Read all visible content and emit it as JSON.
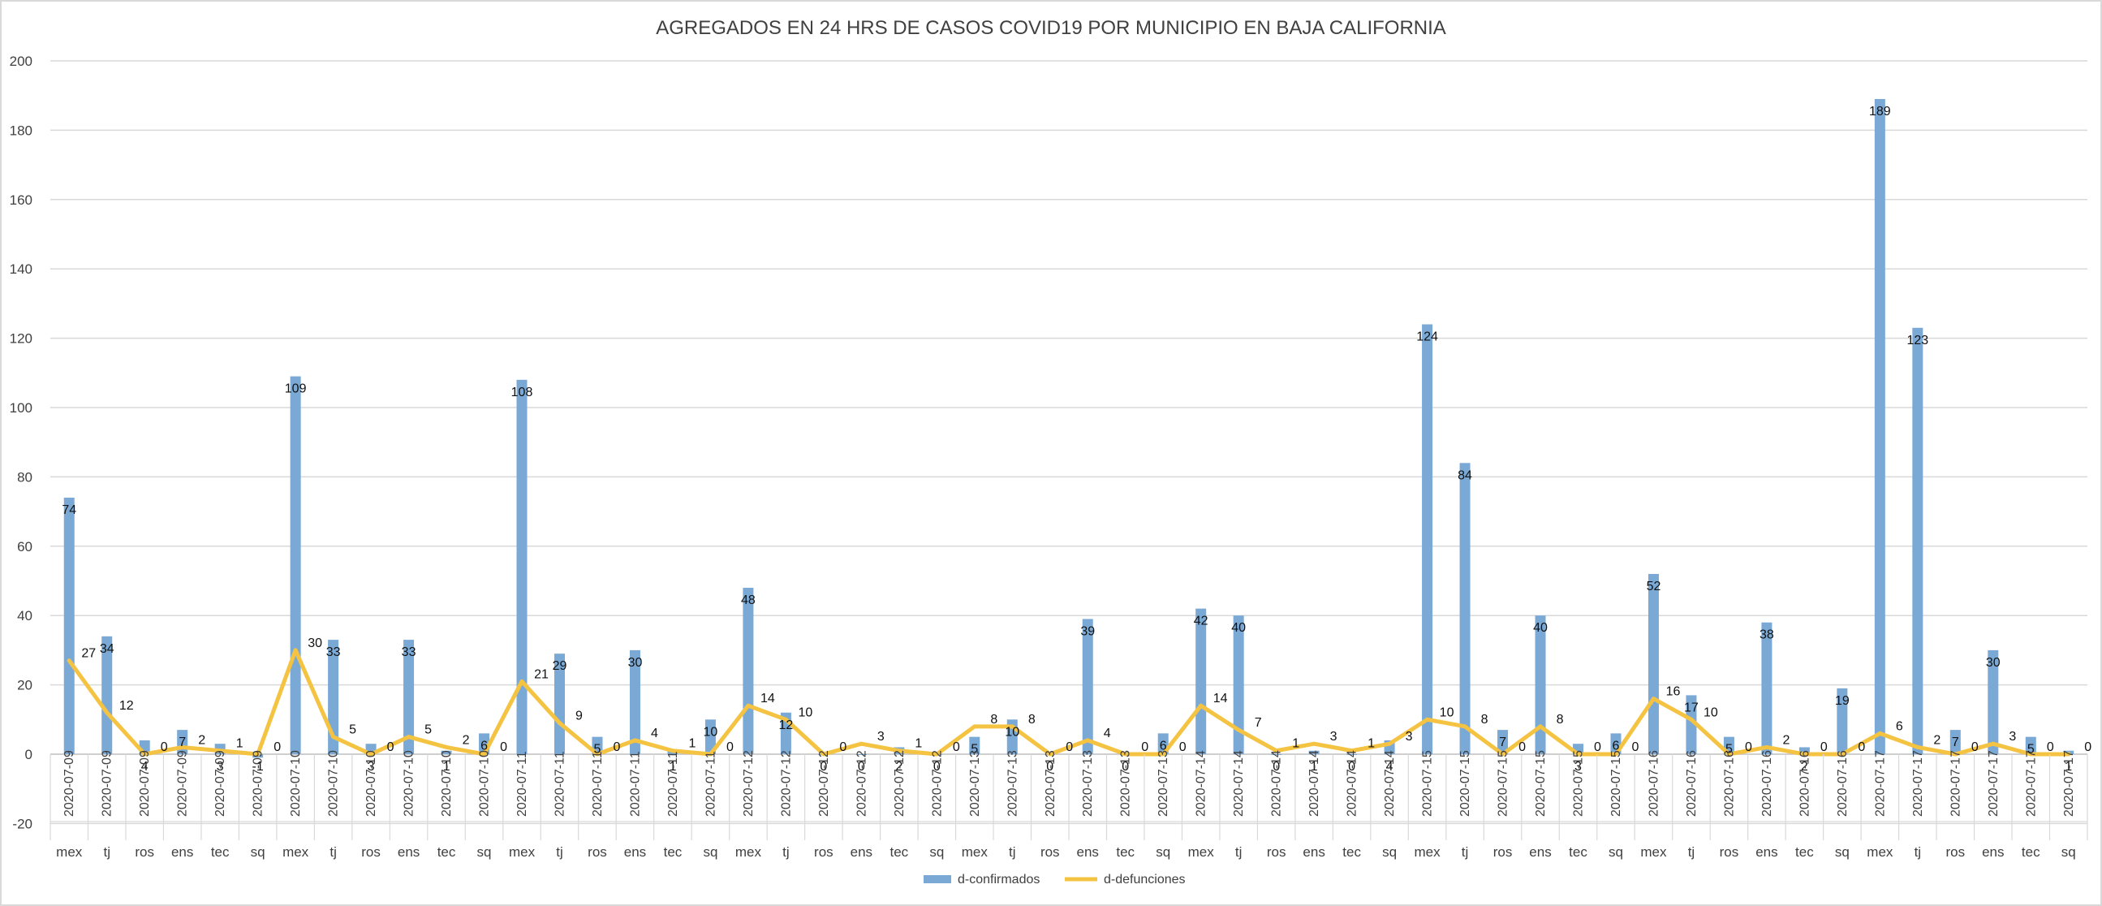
{
  "chart_data": {
    "type": "bar",
    "title": "AGREGADOS EN 24 HRS DE CASOS COVID19 POR MUNICIPIO EN BAJA CALIFORNIA",
    "xlabel": "",
    "ylabel": "",
    "ylim": [
      -20,
      200
    ],
    "yticks": [
      -20,
      0,
      20,
      40,
      60,
      80,
      100,
      120,
      140,
      160,
      180,
      200
    ],
    "grid": true,
    "legend_position": "bottom",
    "dates": [
      "2020-07-09",
      "2020-07-09",
      "2020-07-09",
      "2020-07-09",
      "2020-07-09",
      "2020-07-09",
      "2020-07-10",
      "2020-07-10",
      "2020-07-10",
      "2020-07-10",
      "2020-07-10",
      "2020-07-10",
      "2020-07-11",
      "2020-07-11",
      "2020-07-11",
      "2020-07-11",
      "2020-07-11",
      "2020-07-11",
      "2020-07-12",
      "2020-07-12",
      "2020-07-12",
      "2020-07-12",
      "2020-07-12",
      "2020-07-12",
      "2020-07-13",
      "2020-07-13",
      "2020-07-13",
      "2020-07-13",
      "2020-07-13",
      "2020-07-13",
      "2020-07-14",
      "2020-07-14",
      "2020-07-14",
      "2020-07-14",
      "2020-07-14",
      "2020-07-14",
      "2020-07-15",
      "2020-07-15",
      "2020-07-15",
      "2020-07-15",
      "2020-07-15",
      "2020-07-15",
      "2020-07-16",
      "2020-07-16",
      "2020-07-16",
      "2020-07-16",
      "2020-07-16",
      "2020-07-16",
      "2020-07-17",
      "2020-07-17",
      "2020-07-17",
      "2020-07-17",
      "2020-07-17",
      "2020-07-17"
    ],
    "categories": [
      "mex",
      "tj",
      "ros",
      "ens",
      "tec",
      "sq",
      "mex",
      "tj",
      "ros",
      "ens",
      "tec",
      "sq",
      "mex",
      "tj",
      "ros",
      "ens",
      "tec",
      "sq",
      "mex",
      "tj",
      "ros",
      "ens",
      "tec",
      "sq",
      "mex",
      "tj",
      "ros",
      "ens",
      "tec",
      "sq",
      "mex",
      "tj",
      "ros",
      "ens",
      "tec",
      "sq",
      "mex",
      "tj",
      "ros",
      "ens",
      "tec",
      "sq",
      "mex",
      "tj",
      "ros",
      "ens",
      "tec",
      "sq",
      "mex",
      "tj",
      "ros",
      "ens",
      "tec",
      "sq"
    ],
    "series": [
      {
        "name": "d-confirmados",
        "type": "bar",
        "color": "#7aa9d6",
        "values": [
          74,
          34,
          4,
          7,
          3,
          -1,
          109,
          33,
          3,
          33,
          1,
          6,
          108,
          29,
          5,
          30,
          1,
          10,
          48,
          12,
          0,
          0,
          2,
          0,
          5,
          10,
          0,
          39,
          0,
          6,
          42,
          40,
          0,
          1,
          0,
          4,
          124,
          84,
          7,
          40,
          3,
          6,
          52,
          17,
          5,
          38,
          2,
          19,
          189,
          123,
          7,
          30,
          5,
          1
        ]
      },
      {
        "name": "d-defunciones",
        "type": "line",
        "color": "#f5c342",
        "values": [
          27,
          12,
          0,
          2,
          1,
          0,
          30,
          5,
          0,
          5,
          2,
          0,
          21,
          9,
          0,
          4,
          1,
          0,
          14,
          10,
          0,
          3,
          1,
          0,
          8,
          8,
          0,
          4,
          0,
          0,
          14,
          7,
          1,
          3,
          1,
          3,
          10,
          8,
          0,
          8,
          0,
          0,
          16,
          10,
          0,
          2,
          0,
          0,
          6,
          2,
          0,
          3,
          0,
          0
        ]
      }
    ]
  }
}
